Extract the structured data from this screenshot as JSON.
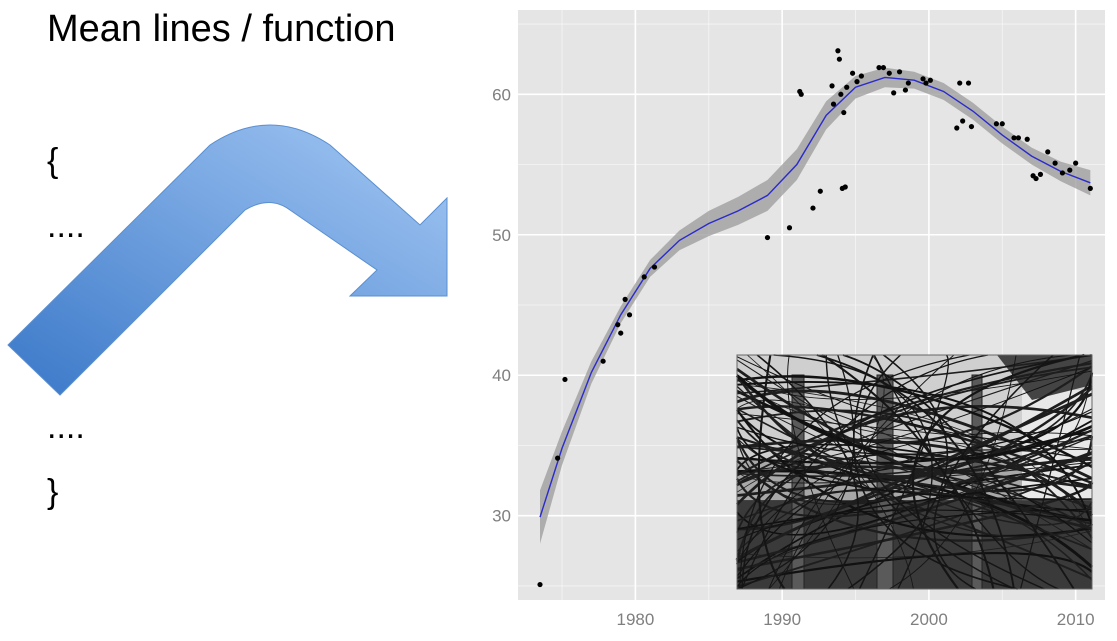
{
  "slide": {
    "title": "Mean lines / function",
    "code_lines": [
      "{",
      "....",
      "....",
      "}"
    ]
  },
  "colors": {
    "panel_bg": "#e5e5e5",
    "grid": "#ffffff",
    "points": "#000000",
    "smooth_line": "#2b2bcc",
    "ribbon": "#9a9a9a",
    "arrow_dark": "#3a78c8",
    "arrow_light": "#9cc3f2"
  },
  "chart_data": {
    "type": "scatter",
    "title": "",
    "xlabel": "",
    "ylabel": "",
    "xlim": [
      1972,
      2012
    ],
    "ylim": [
      24,
      66
    ],
    "x_ticks": [
      "1980",
      "1990",
      "2000",
      "2010"
    ],
    "y_ticks": [
      "30",
      "40",
      "50",
      "60"
    ],
    "grid": true,
    "smoother": "loess with confidence ribbon",
    "points": [
      {
        "x": 1973.5,
        "y": 25.1
      },
      {
        "x": 1974.7,
        "y": 34.1
      },
      {
        "x": 1975.2,
        "y": 39.7
      },
      {
        "x": 1977.8,
        "y": 41.0
      },
      {
        "x": 1978.8,
        "y": 43.6
      },
      {
        "x": 1979.0,
        "y": 43.0
      },
      {
        "x": 1979.3,
        "y": 45.4
      },
      {
        "x": 1979.6,
        "y": 44.3
      },
      {
        "x": 1980.6,
        "y": 47.0
      },
      {
        "x": 1981.3,
        "y": 47.7
      },
      {
        "x": 1989.0,
        "y": 49.8
      },
      {
        "x": 1990.5,
        "y": 50.5
      },
      {
        "x": 1991.2,
        "y": 60.2
      },
      {
        "x": 1991.3,
        "y": 60.0
      },
      {
        "x": 1992.1,
        "y": 51.9
      },
      {
        "x": 1992.6,
        "y": 53.1
      },
      {
        "x": 1993.4,
        "y": 60.6
      },
      {
        "x": 1993.5,
        "y": 59.3
      },
      {
        "x": 1993.8,
        "y": 63.1
      },
      {
        "x": 1993.9,
        "y": 62.5
      },
      {
        "x": 1994.0,
        "y": 60.0
      },
      {
        "x": 1994.1,
        "y": 53.3
      },
      {
        "x": 1994.2,
        "y": 58.7
      },
      {
        "x": 1994.3,
        "y": 53.4
      },
      {
        "x": 1994.4,
        "y": 60.5
      },
      {
        "x": 1994.8,
        "y": 61.5
      },
      {
        "x": 1995.1,
        "y": 60.9
      },
      {
        "x": 1995.4,
        "y": 61.3
      },
      {
        "x": 1996.6,
        "y": 61.9
      },
      {
        "x": 1996.9,
        "y": 61.9
      },
      {
        "x": 1997.3,
        "y": 61.5
      },
      {
        "x": 1997.6,
        "y": 60.1
      },
      {
        "x": 1998.0,
        "y": 61.6
      },
      {
        "x": 1998.4,
        "y": 60.3
      },
      {
        "x": 1998.6,
        "y": 60.8
      },
      {
        "x": 1999.6,
        "y": 61.1
      },
      {
        "x": 1999.8,
        "y": 60.8
      },
      {
        "x": 2000.1,
        "y": 61.0
      },
      {
        "x": 2001.9,
        "y": 57.6
      },
      {
        "x": 2002.1,
        "y": 60.8
      },
      {
        "x": 2002.3,
        "y": 58.1
      },
      {
        "x": 2002.7,
        "y": 60.8
      },
      {
        "x": 2002.9,
        "y": 57.7
      },
      {
        "x": 2004.6,
        "y": 57.9
      },
      {
        "x": 2005.0,
        "y": 57.9
      },
      {
        "x": 2005.8,
        "y": 56.9
      },
      {
        "x": 2006.1,
        "y": 56.9
      },
      {
        "x": 2006.7,
        "y": 56.8
      },
      {
        "x": 2007.1,
        "y": 54.2
      },
      {
        "x": 2007.3,
        "y": 54.0
      },
      {
        "x": 2007.6,
        "y": 54.3
      },
      {
        "x": 2008.1,
        "y": 55.9
      },
      {
        "x": 2008.6,
        "y": 55.1
      },
      {
        "x": 2009.1,
        "y": 54.4
      },
      {
        "x": 2009.6,
        "y": 54.6
      },
      {
        "x": 2010.0,
        "y": 55.1
      },
      {
        "x": 2011.0,
        "y": 53.3
      }
    ],
    "smooth": [
      {
        "x": 1973.5,
        "y": 29.9
      },
      {
        "x": 1975.0,
        "y": 34.8
      },
      {
        "x": 1977.0,
        "y": 40.2
      },
      {
        "x": 1979.0,
        "y": 44.3
      },
      {
        "x": 1981.0,
        "y": 47.6
      },
      {
        "x": 1983.0,
        "y": 49.6
      },
      {
        "x": 1985.0,
        "y": 50.8
      },
      {
        "x": 1987.0,
        "y": 51.7
      },
      {
        "x": 1989.0,
        "y": 52.8
      },
      {
        "x": 1991.0,
        "y": 55.0
      },
      {
        "x": 1993.0,
        "y": 58.5
      },
      {
        "x": 1995.0,
        "y": 60.5
      },
      {
        "x": 1997.0,
        "y": 61.2
      },
      {
        "x": 1999.0,
        "y": 61.0
      },
      {
        "x": 2001.0,
        "y": 60.2
      },
      {
        "x": 2003.0,
        "y": 58.8
      },
      {
        "x": 2005.0,
        "y": 57.1
      },
      {
        "x": 2007.0,
        "y": 55.6
      },
      {
        "x": 2009.0,
        "y": 54.5
      },
      {
        "x": 2011.0,
        "y": 53.7
      }
    ],
    "ribbon_halfwidth": [
      1.9,
      1.2,
      0.8,
      0.6,
      0.6,
      0.7,
      0.9,
      1.0,
      1.1,
      1.1,
      1.0,
      0.8,
      0.7,
      0.6,
      0.6,
      0.6,
      0.6,
      0.6,
      0.7,
      0.9
    ]
  }
}
